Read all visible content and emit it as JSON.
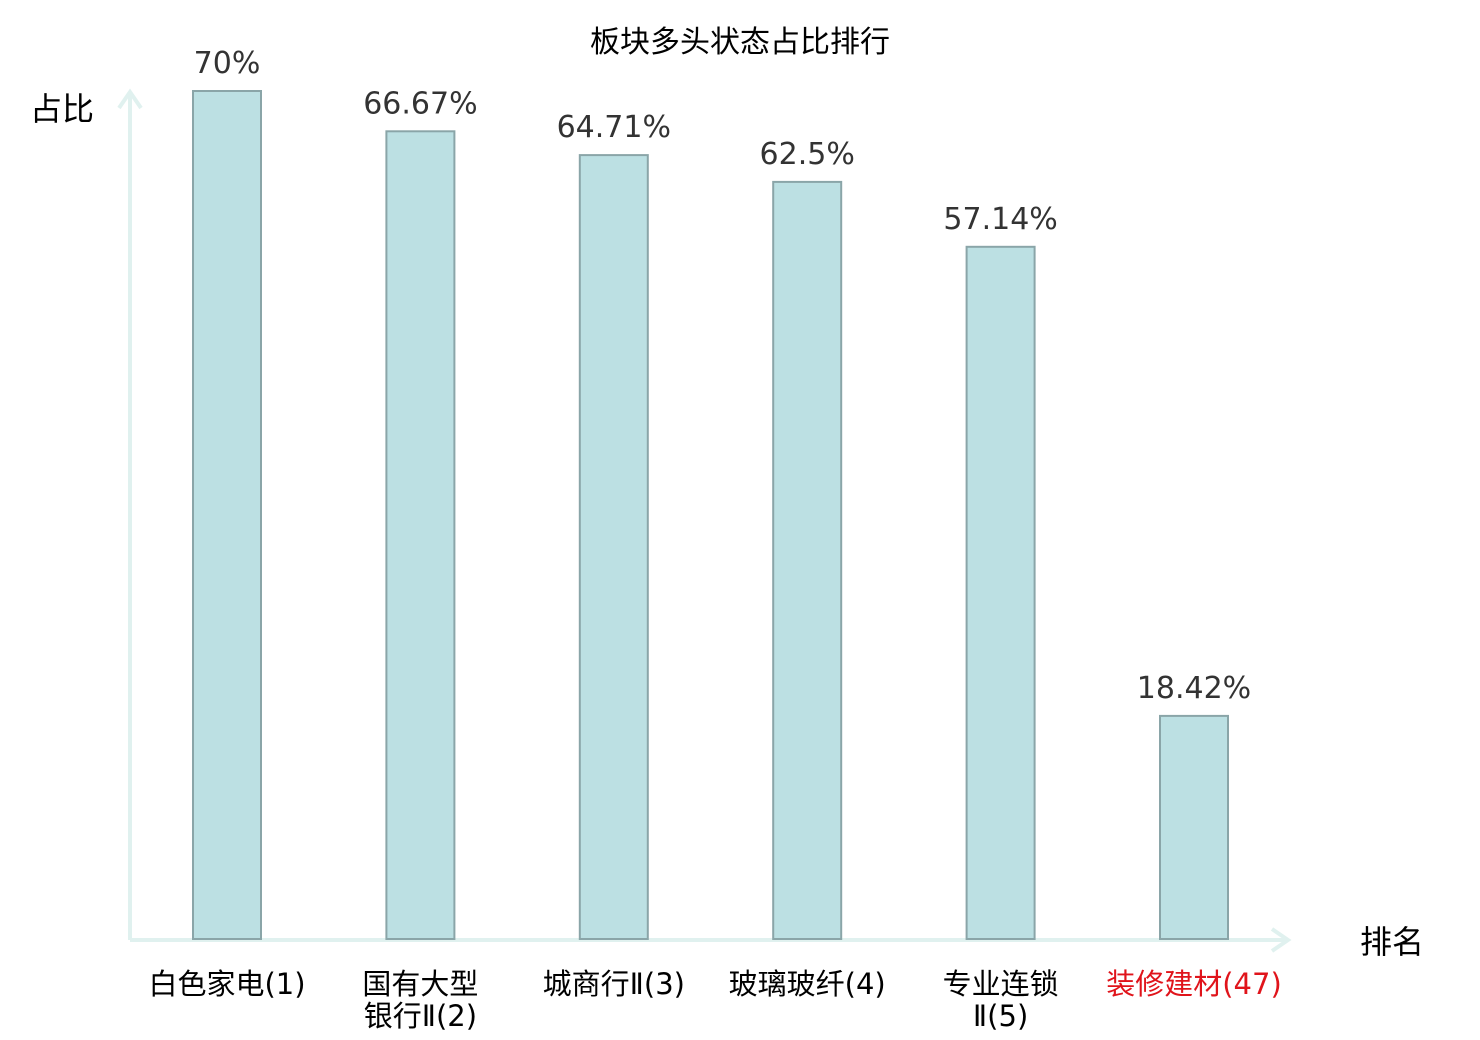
{
  "chart_data": {
    "type": "bar",
    "title": "板块多头状态占比排行",
    "xlabel": "排名",
    "ylabel": "占比",
    "categories": [
      [
        "白色家电(1)"
      ],
      [
        "国有大型",
        "银行Ⅱ(2)"
      ],
      [
        "城商行Ⅱ(3)"
      ],
      [
        "玻璃玻纤(4)"
      ],
      [
        "专业连锁",
        "Ⅱ(5)"
      ],
      [
        "装修建材(47)"
      ]
    ],
    "values": [
      70,
      66.67,
      64.71,
      62.5,
      57.14,
      18.42
    ],
    "value_labels": [
      "70%",
      "66.67%",
      "64.71%",
      "62.5%",
      "57.14%",
      "18.42%"
    ],
    "highlight_category_index": 5,
    "ylim": [
      0,
      70
    ],
    "grid": false,
    "legend": "none",
    "colors": {
      "bar_fill": "#bce0e3",
      "bar_stroke": "#8aa5a8",
      "axis": "#e0f1ef",
      "highlight_text": "#e0141b",
      "normal_text": "#000000",
      "value_text": "#333333"
    }
  }
}
